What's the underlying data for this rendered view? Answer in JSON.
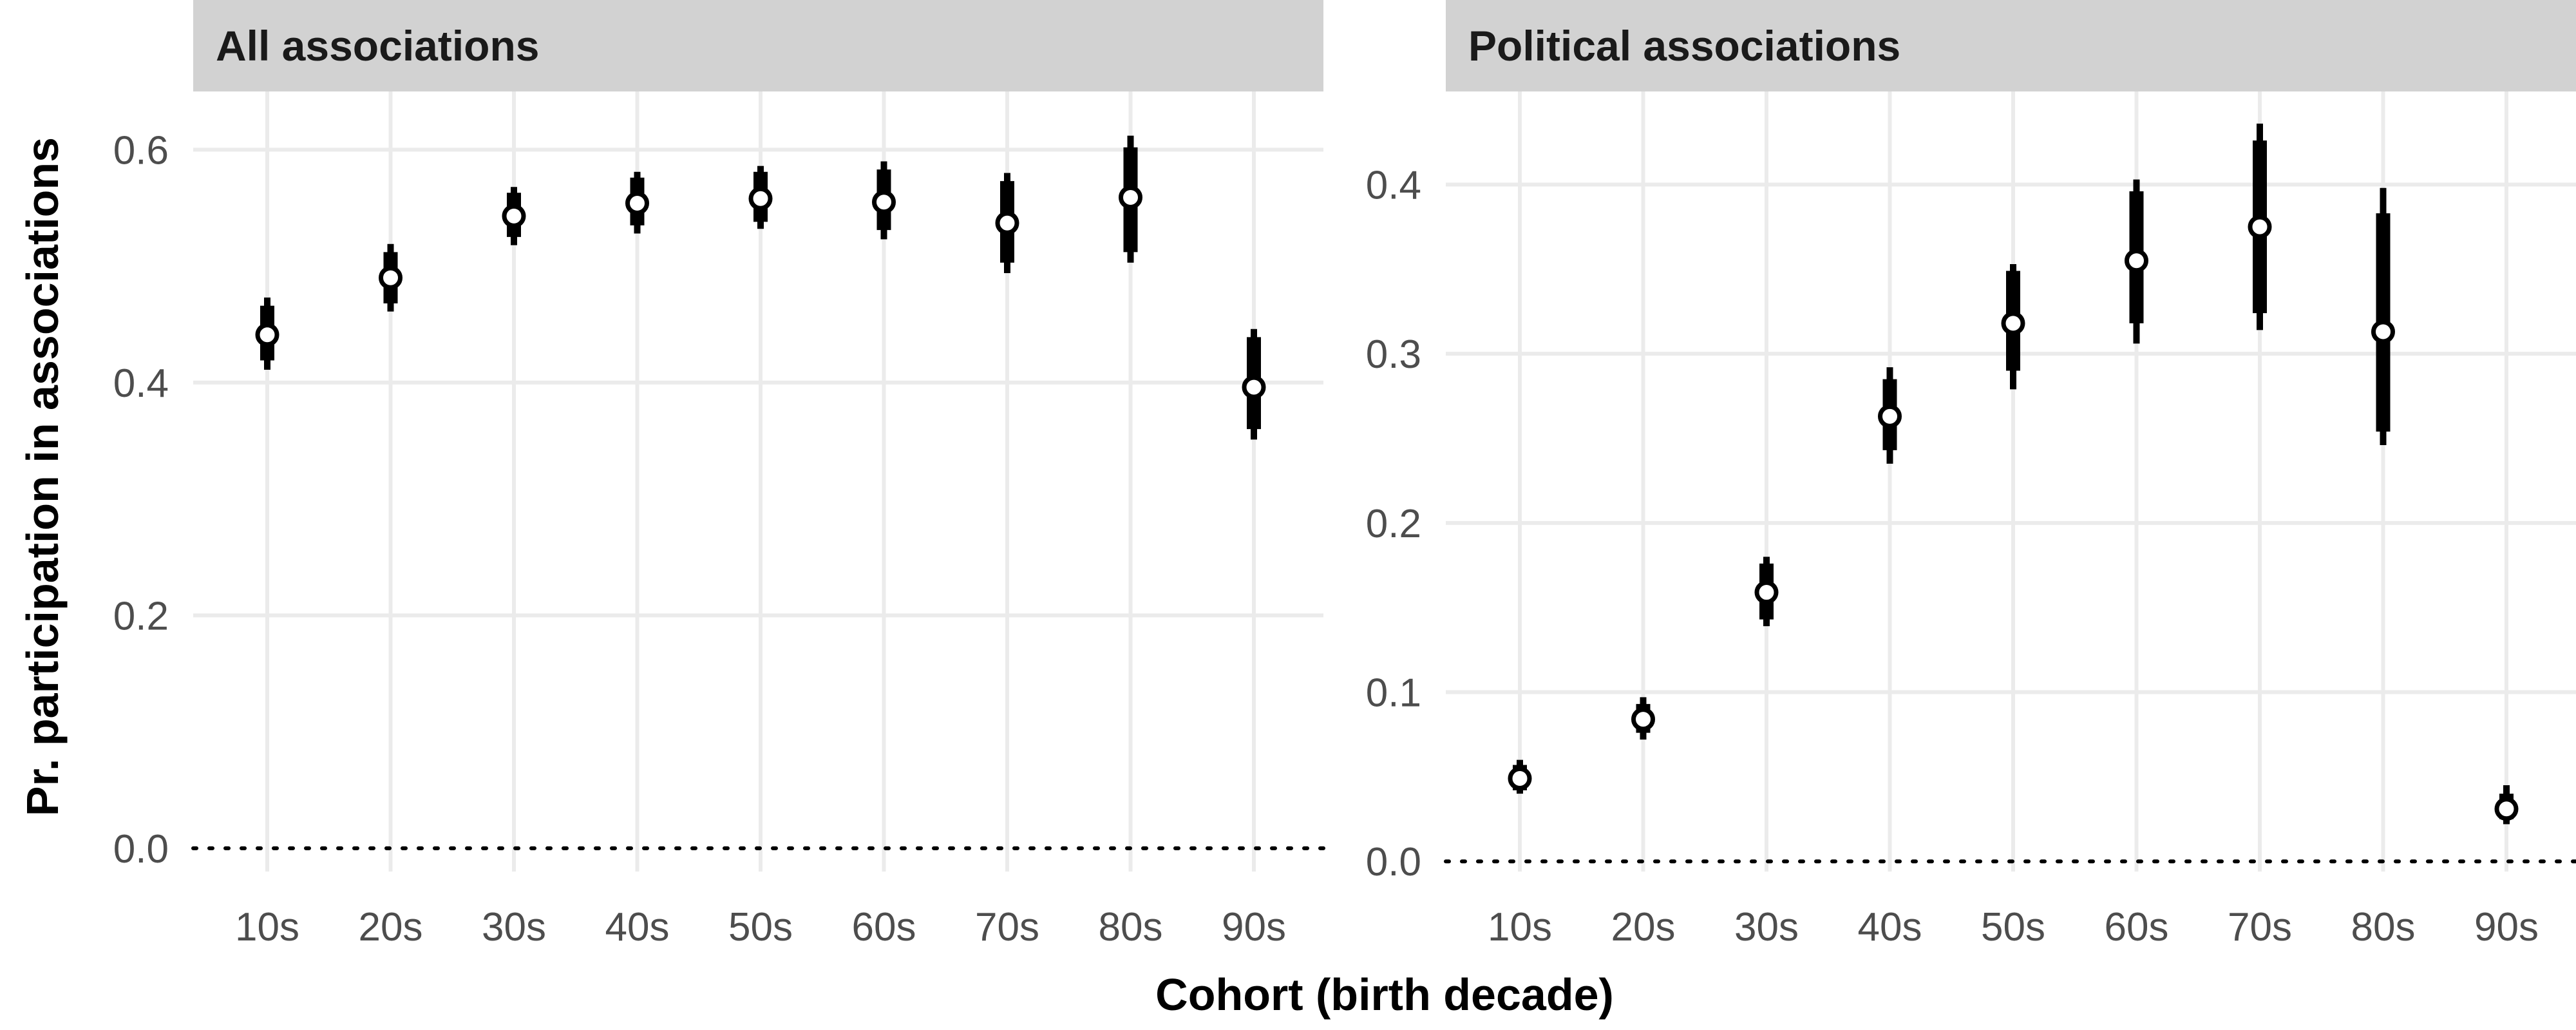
{
  "chart_data": {
    "type": "scatter",
    "subtype": "point-range (faceted)",
    "xlabel": "Cohort (birth decade)",
    "ylabel": "Pr. participation in associations",
    "reference_line": {
      "y": 0,
      "style": "dotted"
    },
    "panels": [
      {
        "title": "All associations",
        "categories": [
          "10s",
          "20s",
          "30s",
          "40s",
          "50s",
          "60s",
          "70s",
          "80s",
          "90s"
        ],
        "ylim": [
          -0.02,
          0.65
        ],
        "yticks": [
          0.0,
          0.2,
          0.4,
          0.6
        ],
        "ytick_labels": [
          "0.0",
          "0.2",
          "0.4",
          "0.6"
        ],
        "estimates": [
          0.441,
          0.49,
          0.543,
          0.554,
          0.558,
          0.555,
          0.537,
          0.559,
          0.396
        ],
        "inner_interval": [
          [
            0.419,
            0.466
          ],
          [
            0.468,
            0.512
          ],
          [
            0.525,
            0.563
          ],
          [
            0.535,
            0.576
          ],
          [
            0.538,
            0.581
          ],
          [
            0.531,
            0.583
          ],
          [
            0.503,
            0.573
          ],
          [
            0.512,
            0.602
          ],
          [
            0.36,
            0.439
          ]
        ],
        "outer_interval": [
          [
            0.411,
            0.473
          ],
          [
            0.461,
            0.519
          ],
          [
            0.518,
            0.568
          ],
          [
            0.528,
            0.581
          ],
          [
            0.532,
            0.586
          ],
          [
            0.523,
            0.59
          ],
          [
            0.494,
            0.58
          ],
          [
            0.503,
            0.612
          ],
          [
            0.351,
            0.446
          ]
        ]
      },
      {
        "title": "Political associations",
        "categories": [
          "10s",
          "20s",
          "30s",
          "40s",
          "50s",
          "60s",
          "70s",
          "80s",
          "90s"
        ],
        "ylim": [
          -0.006,
          0.455
        ],
        "yticks": [
          0.0,
          0.1,
          0.2,
          0.3,
          0.4
        ],
        "ytick_labels": [
          "0.0",
          "0.1",
          "0.2",
          "0.3",
          "0.4"
        ],
        "estimates": [
          0.049,
          0.084,
          0.159,
          0.263,
          0.318,
          0.355,
          0.375,
          0.313,
          0.031
        ],
        "inner_interval": [
          [
            0.042,
            0.057
          ],
          [
            0.076,
            0.093
          ],
          [
            0.143,
            0.176
          ],
          [
            0.243,
            0.285
          ],
          [
            0.29,
            0.349
          ],
          [
            0.318,
            0.396
          ],
          [
            0.324,
            0.426
          ],
          [
            0.254,
            0.383
          ],
          [
            0.025,
            0.04
          ]
        ],
        "outer_interval": [
          [
            0.04,
            0.06
          ],
          [
            0.072,
            0.097
          ],
          [
            0.139,
            0.18
          ],
          [
            0.235,
            0.292
          ],
          [
            0.279,
            0.353
          ],
          [
            0.306,
            0.403
          ],
          [
            0.314,
            0.436
          ],
          [
            0.246,
            0.398
          ],
          [
            0.022,
            0.045
          ]
        ]
      }
    ]
  }
}
